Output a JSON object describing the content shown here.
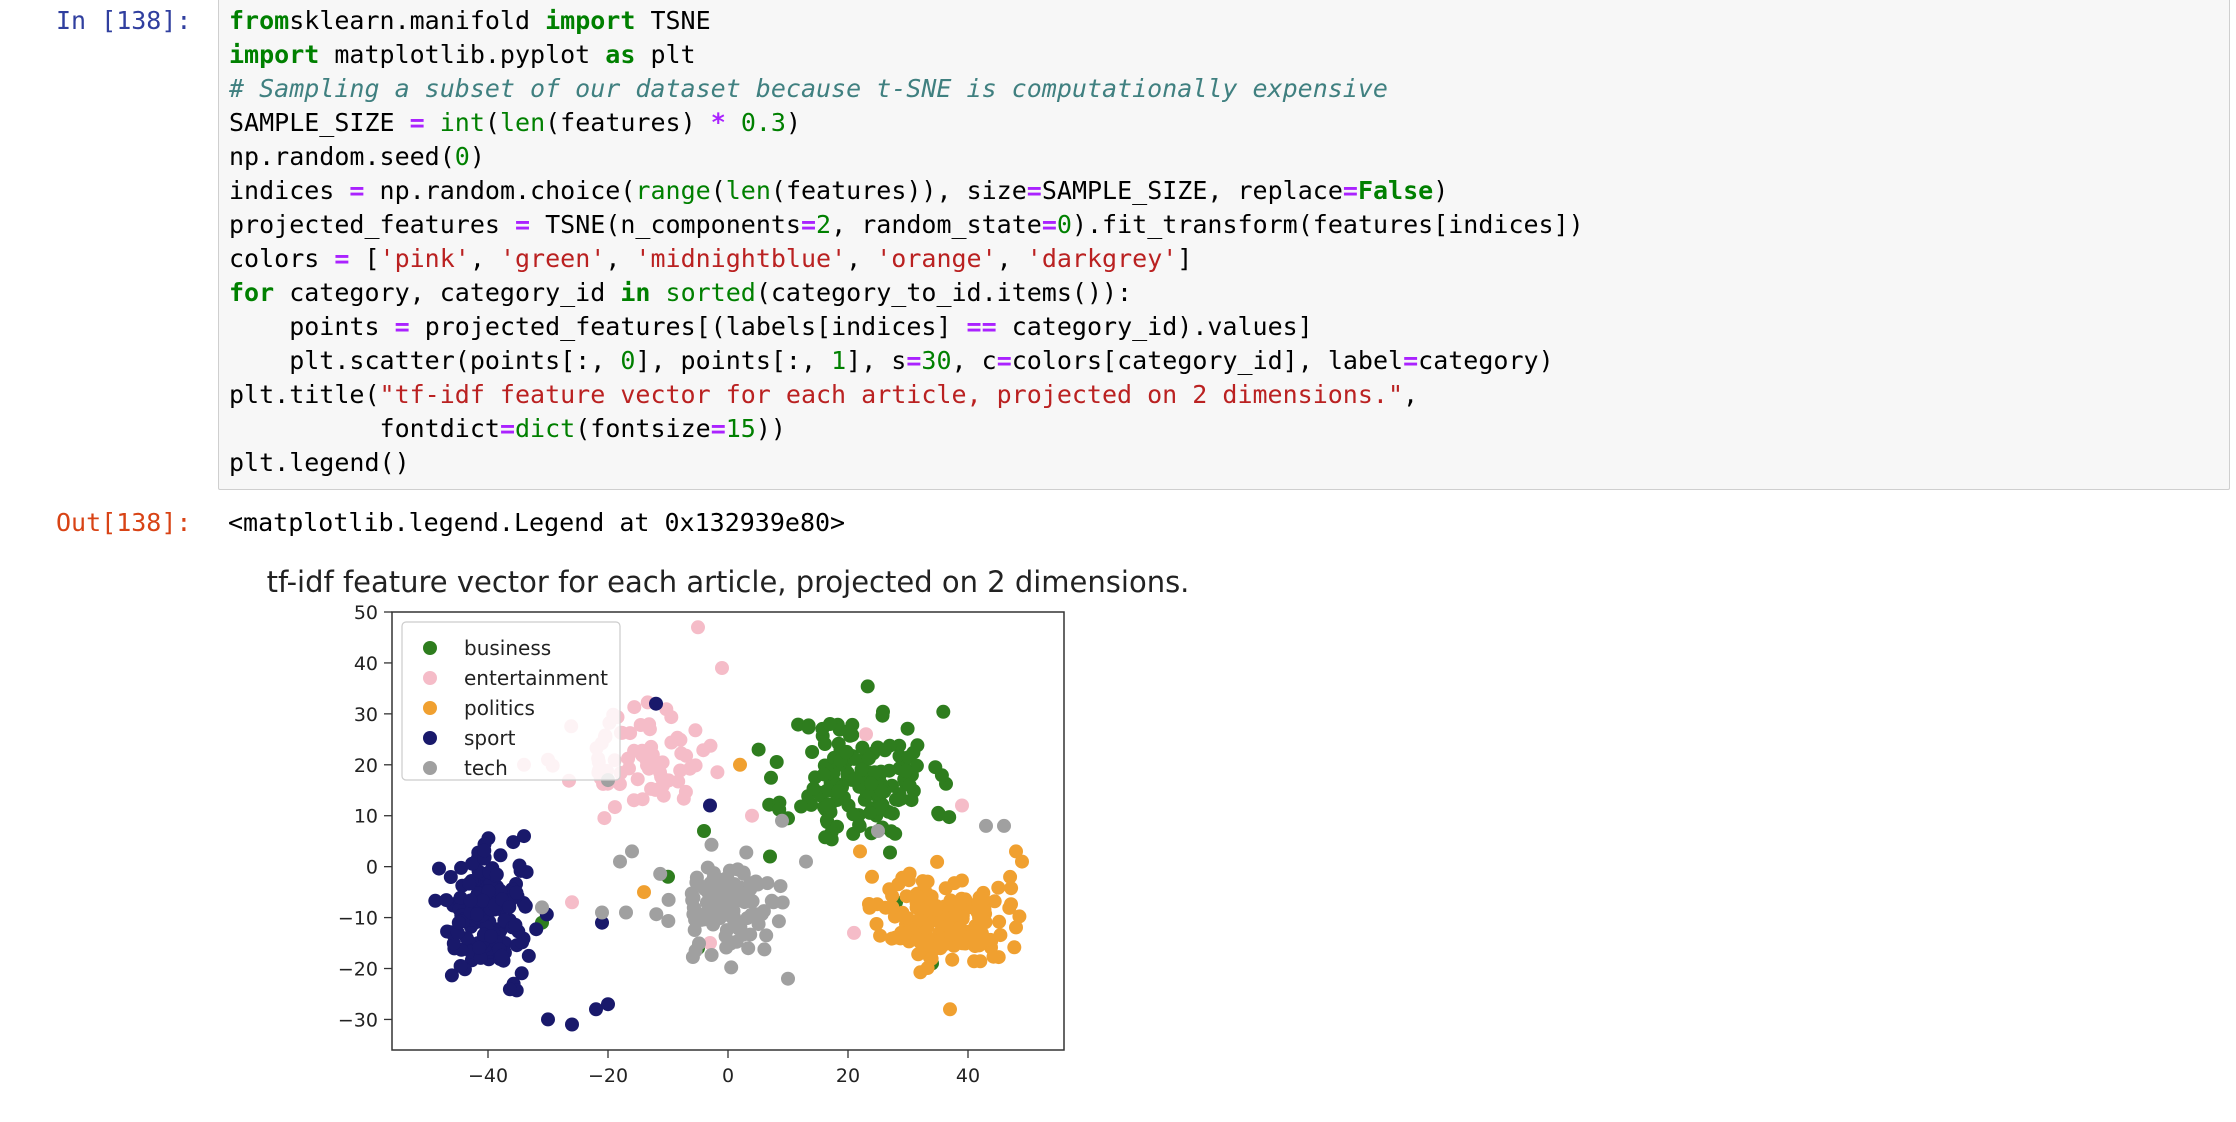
{
  "cell": {
    "in_prompt": "In [138]:",
    "out_prompt": "Out[138]:",
    "output_text": "<matplotlib.legend.Legend at 0x132939e80>",
    "code_lines": [
      [
        [
          "kw",
          "from"
        ],
        [
          "",
          "sklearn.manifold "
        ],
        [
          "kw",
          "import"
        ],
        [
          "",
          " TSNE"
        ]
      ],
      [
        [
          "kw",
          "import"
        ],
        [
          "",
          " matplotlib.pyplot "
        ],
        [
          "kw",
          "as"
        ],
        [
          "",
          " plt"
        ]
      ],
      [
        [
          "cm",
          "# Sampling a subset of our dataset because t-SNE is computationally expensive"
        ]
      ],
      [
        [
          "",
          "SAMPLE_SIZE "
        ],
        [
          "op",
          "="
        ],
        [
          "",
          " "
        ],
        [
          "bi",
          "int"
        ],
        [
          "",
          "("
        ],
        [
          "bi",
          "len"
        ],
        [
          "",
          "(features) "
        ],
        [
          "op",
          "*"
        ],
        [
          "",
          " "
        ],
        [
          "num",
          "0.3"
        ],
        [
          "",
          ")"
        ]
      ],
      [
        [
          "",
          "np.random.seed("
        ],
        [
          "num",
          "0"
        ],
        [
          "",
          ")"
        ]
      ],
      [
        [
          "",
          "indices "
        ],
        [
          "op",
          "="
        ],
        [
          "",
          " np.random.choice("
        ],
        [
          "bi",
          "range"
        ],
        [
          "",
          "("
        ],
        [
          "bi",
          "len"
        ],
        [
          "",
          "(features)), size"
        ],
        [
          "op",
          "="
        ],
        [
          "",
          "SAMPLE_SIZE, replace"
        ],
        [
          "op",
          "="
        ],
        [
          "kw",
          "False"
        ],
        [
          "",
          ")"
        ]
      ],
      [
        [
          "",
          "projected_features "
        ],
        [
          "op",
          "="
        ],
        [
          "",
          " TSNE(n_components"
        ],
        [
          "op",
          "="
        ],
        [
          "num",
          "2"
        ],
        [
          "",
          ", random_state"
        ],
        [
          "op",
          "="
        ],
        [
          "num",
          "0"
        ],
        [
          "",
          "). fit_transform(features[indices])"
        ]
      ],
      [
        [
          "",
          "colors "
        ],
        [
          "op",
          "="
        ],
        [
          "",
          " ["
        ],
        [
          "str",
          "'pink'"
        ],
        [
          "",
          ", "
        ],
        [
          "str",
          "'green'"
        ],
        [
          "",
          ", "
        ],
        [
          "str",
          "'midnightblue'"
        ],
        [
          "",
          ", "
        ],
        [
          "str",
          "'orange'"
        ],
        [
          "",
          ", "
        ],
        [
          "str",
          "'darkgrey'"
        ],
        [
          "",
          "]"
        ]
      ],
      [
        [
          "kw",
          "for"
        ],
        [
          "",
          " category, category_id "
        ],
        [
          "kw",
          "in"
        ],
        [
          "",
          " "
        ],
        [
          "bi",
          "sorted"
        ],
        [
          "",
          "(category_to_id.items()):"
        ]
      ],
      [
        [
          "",
          "    points "
        ],
        [
          "op",
          "="
        ],
        [
          "",
          " projected_features[(labels[indices] "
        ],
        [
          "op",
          "=="
        ],
        [
          "",
          " category_id).values]"
        ]
      ],
      [
        [
          "",
          "    plt.scatter(points[:, "
        ],
        [
          "num",
          "0"
        ],
        [
          "",
          "], points[:, "
        ],
        [
          "num",
          "1"
        ],
        [
          "",
          "], s"
        ],
        [
          "op",
          "="
        ],
        [
          "num",
          "30"
        ],
        [
          "",
          ", c"
        ],
        [
          "op",
          "="
        ],
        [
          "",
          "colors[category_id], label"
        ],
        [
          "op",
          "="
        ],
        [
          "",
          "category)"
        ]
      ],
      [
        [
          "",
          "plt.title("
        ],
        [
          "str",
          "\"tf-idf feature vector for each article, projected on 2 dimensions.\""
        ],
        [
          "",
          ","
        ]
      ],
      [
        [
          "",
          "          fontdict"
        ],
        [
          "op",
          "="
        ],
        [
          "bi",
          "dict"
        ],
        [
          "",
          "(fontsize"
        ],
        [
          "op",
          "="
        ],
        [
          "num",
          "15"
        ],
        [
          "",
          "))"
        ]
      ],
      [
        [
          "",
          "plt.legend()"
        ]
      ]
    ]
  },
  "chart_data": {
    "type": "scatter",
    "title": "tf-idf feature vector for each article, projected on 2 dimensions.",
    "xlabel": "",
    "ylabel": "",
    "xlim": [
      -56,
      56
    ],
    "ylim": [
      -36,
      50
    ],
    "xticks": [
      -40,
      -20,
      0,
      20,
      40
    ],
    "yticks": [
      -30,
      -20,
      -10,
      0,
      10,
      20,
      30,
      40,
      50
    ],
    "xtick_labels": [
      "−40",
      "−20",
      "0",
      "20",
      "40"
    ],
    "ytick_labels": [
      "−30",
      "−20",
      "−10",
      "0",
      "10",
      "20",
      "30",
      "40",
      "50"
    ],
    "grid": false,
    "legend": "top-left",
    "series": [
      {
        "name": "business",
        "color": "#2e7d1e",
        "center": [
          22,
          17
        ],
        "spread": [
          8,
          9
        ],
        "n": 150,
        "seed": 11,
        "extra": [
          [
            -31,
            -11
          ],
          [
            -4,
            7
          ],
          [
            7,
            2
          ],
          [
            -10,
            -2
          ],
          [
            28,
            -7
          ],
          [
            41,
            -8
          ],
          [
            34,
            -19
          ],
          [
            -5,
            -16
          ],
          [
            17,
            28
          ]
        ]
      },
      {
        "name": "entertainment",
        "color": "#f5bcc8",
        "center": [
          -15,
          21
        ],
        "spread": [
          7,
          6
        ],
        "n": 75,
        "seed": 23,
        "extra": [
          [
            -5,
            47
          ],
          [
            -1,
            39
          ],
          [
            -30,
            21
          ],
          [
            -34,
            20
          ],
          [
            23,
            26
          ],
          [
            4,
            10
          ],
          [
            -3,
            -15
          ],
          [
            21,
            -13
          ],
          [
            39,
            12
          ],
          [
            -26,
            -7
          ]
        ]
      },
      {
        "name": "politics",
        "color": "#f0a030",
        "center": [
          36,
          -10
        ],
        "spread": [
          7,
          6
        ],
        "n": 150,
        "seed": 37,
        "extra": [
          [
            37,
            -28
          ],
          [
            48,
            3
          ],
          [
            49,
            1
          ],
          [
            2,
            20
          ],
          [
            22,
            3
          ],
          [
            -14,
            -5
          ],
          [
            24,
            -2
          ]
        ]
      },
      {
        "name": "sport",
        "color": "#19196b",
        "center": [
          -40,
          -9
        ],
        "spread": [
          5,
          8
        ],
        "n": 155,
        "seed": 41,
        "extra": [
          [
            -12,
            32
          ],
          [
            -26,
            -31
          ],
          [
            -20,
            -27
          ],
          [
            -22,
            -28
          ],
          [
            -30,
            -30
          ],
          [
            -34,
            6
          ],
          [
            -21,
            -11
          ],
          [
            -3,
            12
          ]
        ]
      },
      {
        "name": "tech",
        "color": "#a0a0a0",
        "center": [
          0,
          -7
        ],
        "spread": [
          6,
          6
        ],
        "n": 125,
        "seed": 53,
        "extra": [
          [
            -17,
            -9
          ],
          [
            -21,
            -9
          ],
          [
            -18,
            1
          ],
          [
            -16,
            3
          ],
          [
            43,
            8
          ],
          [
            46,
            8
          ],
          [
            -31,
            -8
          ],
          [
            -20,
            17
          ],
          [
            9,
            9
          ],
          [
            10,
            -22
          ],
          [
            13,
            1
          ],
          [
            25,
            7
          ]
        ]
      }
    ]
  }
}
